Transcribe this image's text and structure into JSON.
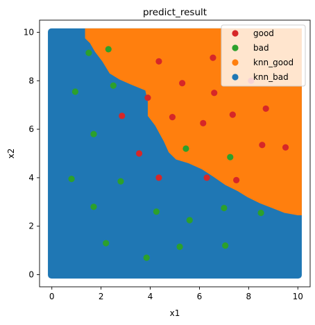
{
  "chart_data": {
    "type": "scatter",
    "title": "predict_result",
    "xlabel": "x1",
    "ylabel": "x2",
    "xlim": [
      -0.5,
      10.5
    ],
    "ylim": [
      -0.5,
      10.5
    ],
    "xticks": [
      0,
      2,
      4,
      6,
      8,
      10
    ],
    "yticks": [
      0,
      2,
      4,
      6,
      8,
      10
    ],
    "grid": false,
    "legend_position": "top-right",
    "decision_boundary": [
      [
        1.35,
        10
      ],
      [
        1.35,
        9.75
      ],
      [
        1.55,
        9.55
      ],
      [
        1.75,
        9.2
      ],
      [
        2.05,
        8.8
      ],
      [
        2.35,
        8.3
      ],
      [
        2.75,
        8.05
      ],
      [
        3.2,
        7.85
      ],
      [
        3.8,
        7.6
      ],
      [
        3.9,
        7.15
      ],
      [
        3.9,
        6.55
      ],
      [
        4.2,
        6.15
      ],
      [
        4.55,
        5.5
      ],
      [
        4.75,
        5.05
      ],
      [
        5.05,
        4.75
      ],
      [
        5.55,
        4.6
      ],
      [
        6.1,
        4.35
      ],
      [
        6.55,
        4.05
      ],
      [
        7.05,
        3.7
      ],
      [
        7.55,
        3.45
      ],
      [
        7.95,
        3.2
      ],
      [
        8.45,
        2.95
      ],
      [
        8.95,
        2.75
      ],
      [
        9.45,
        2.55
      ],
      [
        10,
        2.45
      ]
    ],
    "series": [
      {
        "name": "good",
        "color": "#d62728",
        "points": [
          [
            4.35,
            8.8
          ],
          [
            6.55,
            8.95
          ],
          [
            5.3,
            7.9
          ],
          [
            3.9,
            7.3
          ],
          [
            6.6,
            7.5
          ],
          [
            8.1,
            8.0
          ],
          [
            2.85,
            6.55
          ],
          [
            4.9,
            6.5
          ],
          [
            6.15,
            6.25
          ],
          [
            7.35,
            6.6
          ],
          [
            8.7,
            6.85
          ],
          [
            3.55,
            5.0
          ],
          [
            8.55,
            5.35
          ],
          [
            9.5,
            5.25
          ],
          [
            4.35,
            4.0
          ],
          [
            6.3,
            4.0
          ],
          [
            7.5,
            3.9
          ]
        ]
      },
      {
        "name": "bad",
        "color": "#2ca02c",
        "points": [
          [
            1.5,
            9.15
          ],
          [
            2.3,
            9.3
          ],
          [
            0.95,
            7.55
          ],
          [
            2.5,
            7.8
          ],
          [
            1.7,
            5.8
          ],
          [
            5.45,
            5.2
          ],
          [
            7.25,
            4.85
          ],
          [
            0.8,
            3.95
          ],
          [
            2.8,
            3.85
          ],
          [
            1.7,
            2.8
          ],
          [
            4.25,
            2.6
          ],
          [
            5.6,
            2.25
          ],
          [
            7.0,
            2.75
          ],
          [
            8.5,
            2.55
          ],
          [
            2.2,
            1.3
          ],
          [
            5.2,
            1.15
          ],
          [
            7.05,
            1.2
          ],
          [
            3.85,
            0.7
          ]
        ]
      },
      {
        "name": "knn_good",
        "color": "#ff7f0e"
      },
      {
        "name": "knn_bad",
        "color": "#1f77b4"
      }
    ]
  }
}
